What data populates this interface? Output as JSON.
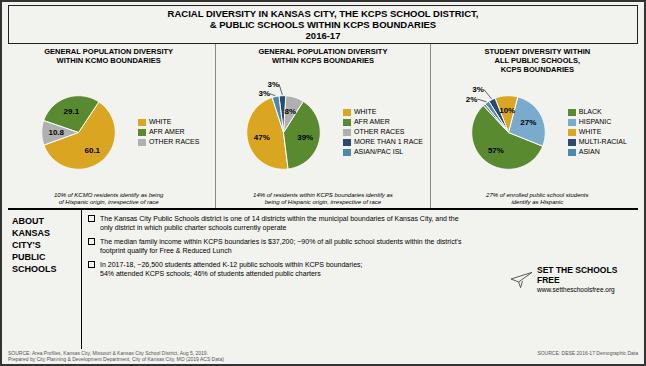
{
  "title": "RACIAL DIVERSITY IN KANSAS CITY, THE KCPS SCHOOL DISTRICT,\n& PUBLIC SCHOOLS WITHIN KCPS BOUNDARIES\n2016-17",
  "chart_data": [
    {
      "type": "pie",
      "title": "GENERAL POPULATION DIVERSITY\nWITHIN KCMO BOUNDARIES",
      "categories": [
        "WHITE",
        "AFR AMER",
        "OTHER RACES"
      ],
      "values": [
        60.1,
        29.1,
        10.8
      ],
      "colors": [
        "#DAA520",
        "#5A8A30",
        "#B0B0B0"
      ],
      "data_labels": true,
      "legend": "right",
      "annotations": [
        "10% of KCMO residents identify as being\nof Hispanic origin, irrespective of race"
      ]
    },
    {
      "type": "pie",
      "title": "GENERAL POPULATION DIVERSITY\nWITHIN KCPS BOUNDARIES",
      "categories": [
        "WHITE",
        "AFR AMER",
        "OTHER RACES",
        "MORE THAN 1 RACE",
        "ASIAN/PAC ISL"
      ],
      "values": [
        47,
        39,
        8,
        3,
        3
      ],
      "value_labels": [
        "47%",
        "39%",
        "8%",
        "3%",
        "3%"
      ],
      "colors": [
        "#DAA520",
        "#5A8A30",
        "#B0B0B0",
        "#2B4A6E",
        "#4A8AB0"
      ],
      "data_labels": true,
      "legend": "right",
      "annotations": [
        "14% of residents within KCPS boundaries identify as\nbeing of Hispanic origin, irrespective of race"
      ]
    },
    {
      "type": "pie",
      "title": "STUDENT DIVERSITY WITHIN\nALL PUBLIC SCHOOLS,\nKCPS BOUNDARIES",
      "categories": [
        "BLACK",
        "HISPANIC",
        "WHITE",
        "MULTI-RACIAL",
        "ASIAN",
        null
      ],
      "values": [
        57,
        27,
        10,
        3,
        2,
        1
      ],
      "value_labels": [
        "57%",
        "27%",
        "10%",
        "3%",
        "2%",
        null
      ],
      "colors": [
        "#5A8A30",
        "#7AAACC",
        "#DAA520",
        "#2B4A6E",
        "#4A8AB0",
        "#888888"
      ],
      "data_labels": true,
      "legend": "right",
      "annotations": [
        "27% of enrolled public school students\nidentify as Hispanic"
      ]
    }
  ],
  "annotations": {
    "heading": "ABOUT\nKANSAS\nCITY'S\nPUBLIC\nSCHOOLS",
    "bullets": [
      "The Kansas City Public Schools district is one of 14 districts within the municipal boundaries of Kansas City, and the\nonly district in which public charter schools currently operate",
      "The median family income within KCPS boundaries is $37,200; ~90% of all public school students within the district's\nfootprint qualify for Free & Reduced Lunch",
      "In 2017-18, ~26,500 students attended K-12 public schools within KCPS boundaries;\n54% attended KCPS schools; 46% of students attended public charters"
    ],
    "brand": "SET THE SCHOOLS FREE",
    "brand_url": "www.settheschoolsfree.org",
    "sources": [
      "SOURCE: Area Profiles, Kansas City, Missouri & Kansas City School District, Aug 5, 2019.\nPrepared by City Planning & Development Department, City of Kansas City, MO (2019 ACS Data)",
      "SOURCE: DESE 2016-17 Demographic Data"
    ]
  }
}
